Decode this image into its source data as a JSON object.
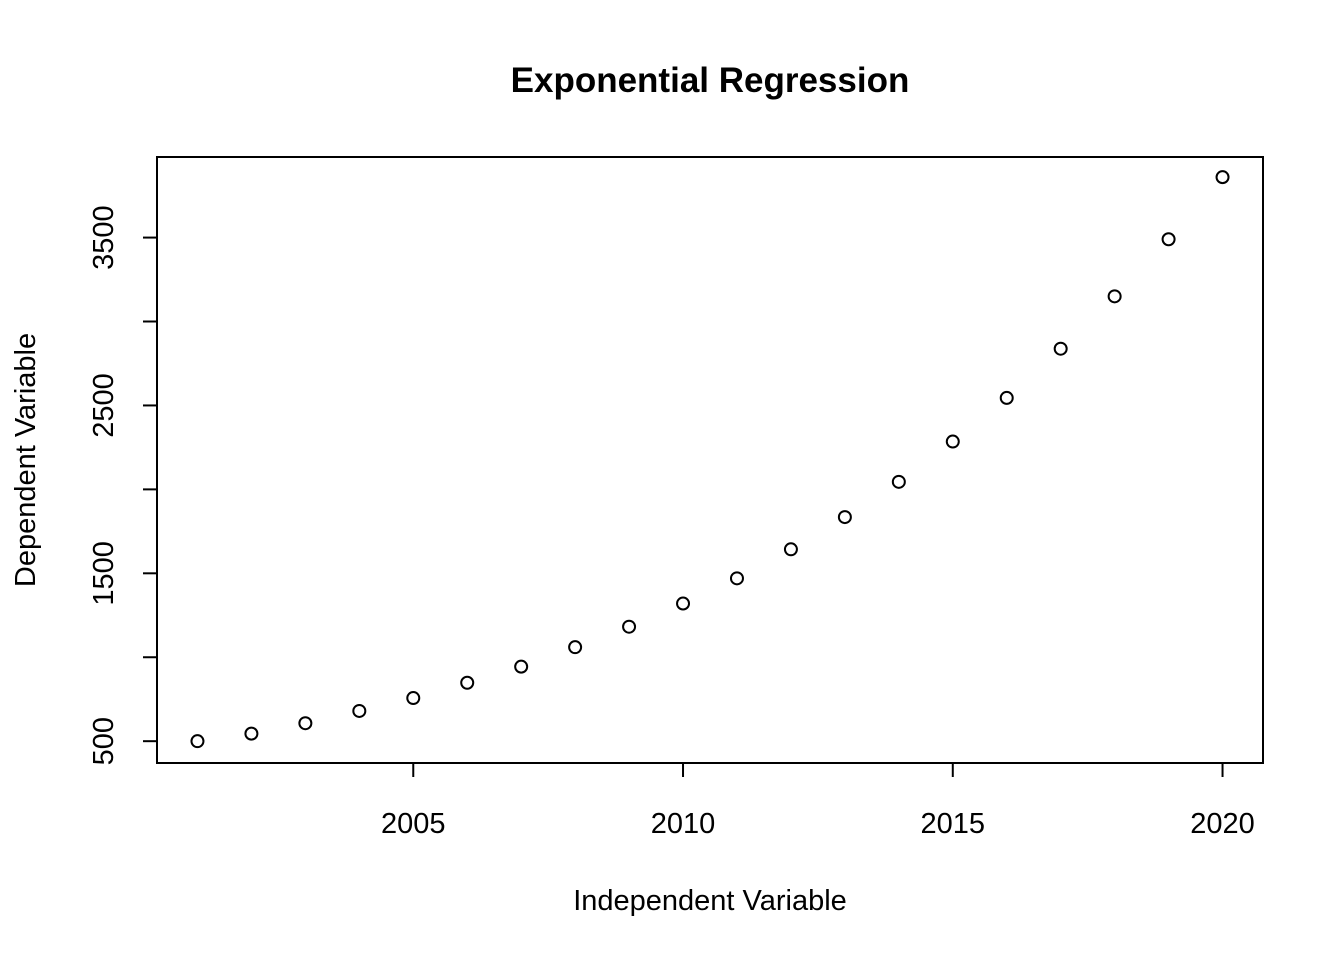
{
  "chart_data": {
    "type": "scatter",
    "title": "Exponential Regression",
    "xlabel": "Independent Variable",
    "ylabel": "Dependent Variable",
    "xlim": [
      2000.25,
      2020.75
    ],
    "ylim": [
      370,
      3980
    ],
    "x_ticks": [
      2005,
      2010,
      2015,
      2020
    ],
    "y_ticks": [
      500,
      1000,
      1500,
      2000,
      2500,
      3000,
      3500
    ],
    "y_tick_labels": [
      "500",
      "",
      "1500",
      "",
      "2500",
      "",
      "3500"
    ],
    "grid": false,
    "marker": "open-circle",
    "x": [
      2001,
      2002,
      2003,
      2004,
      2005,
      2006,
      2007,
      2008,
      2009,
      2010,
      2011,
      2012,
      2013,
      2014,
      2015,
      2016,
      2017,
      2018,
      2019,
      2020
    ],
    "y": [
      500,
      545,
      607,
      680,
      757,
      848,
      944,
      1060,
      1182,
      1320,
      1470,
      1643,
      1835,
      2045,
      2285,
      2545,
      2838,
      3150,
      3490,
      3860
    ]
  }
}
